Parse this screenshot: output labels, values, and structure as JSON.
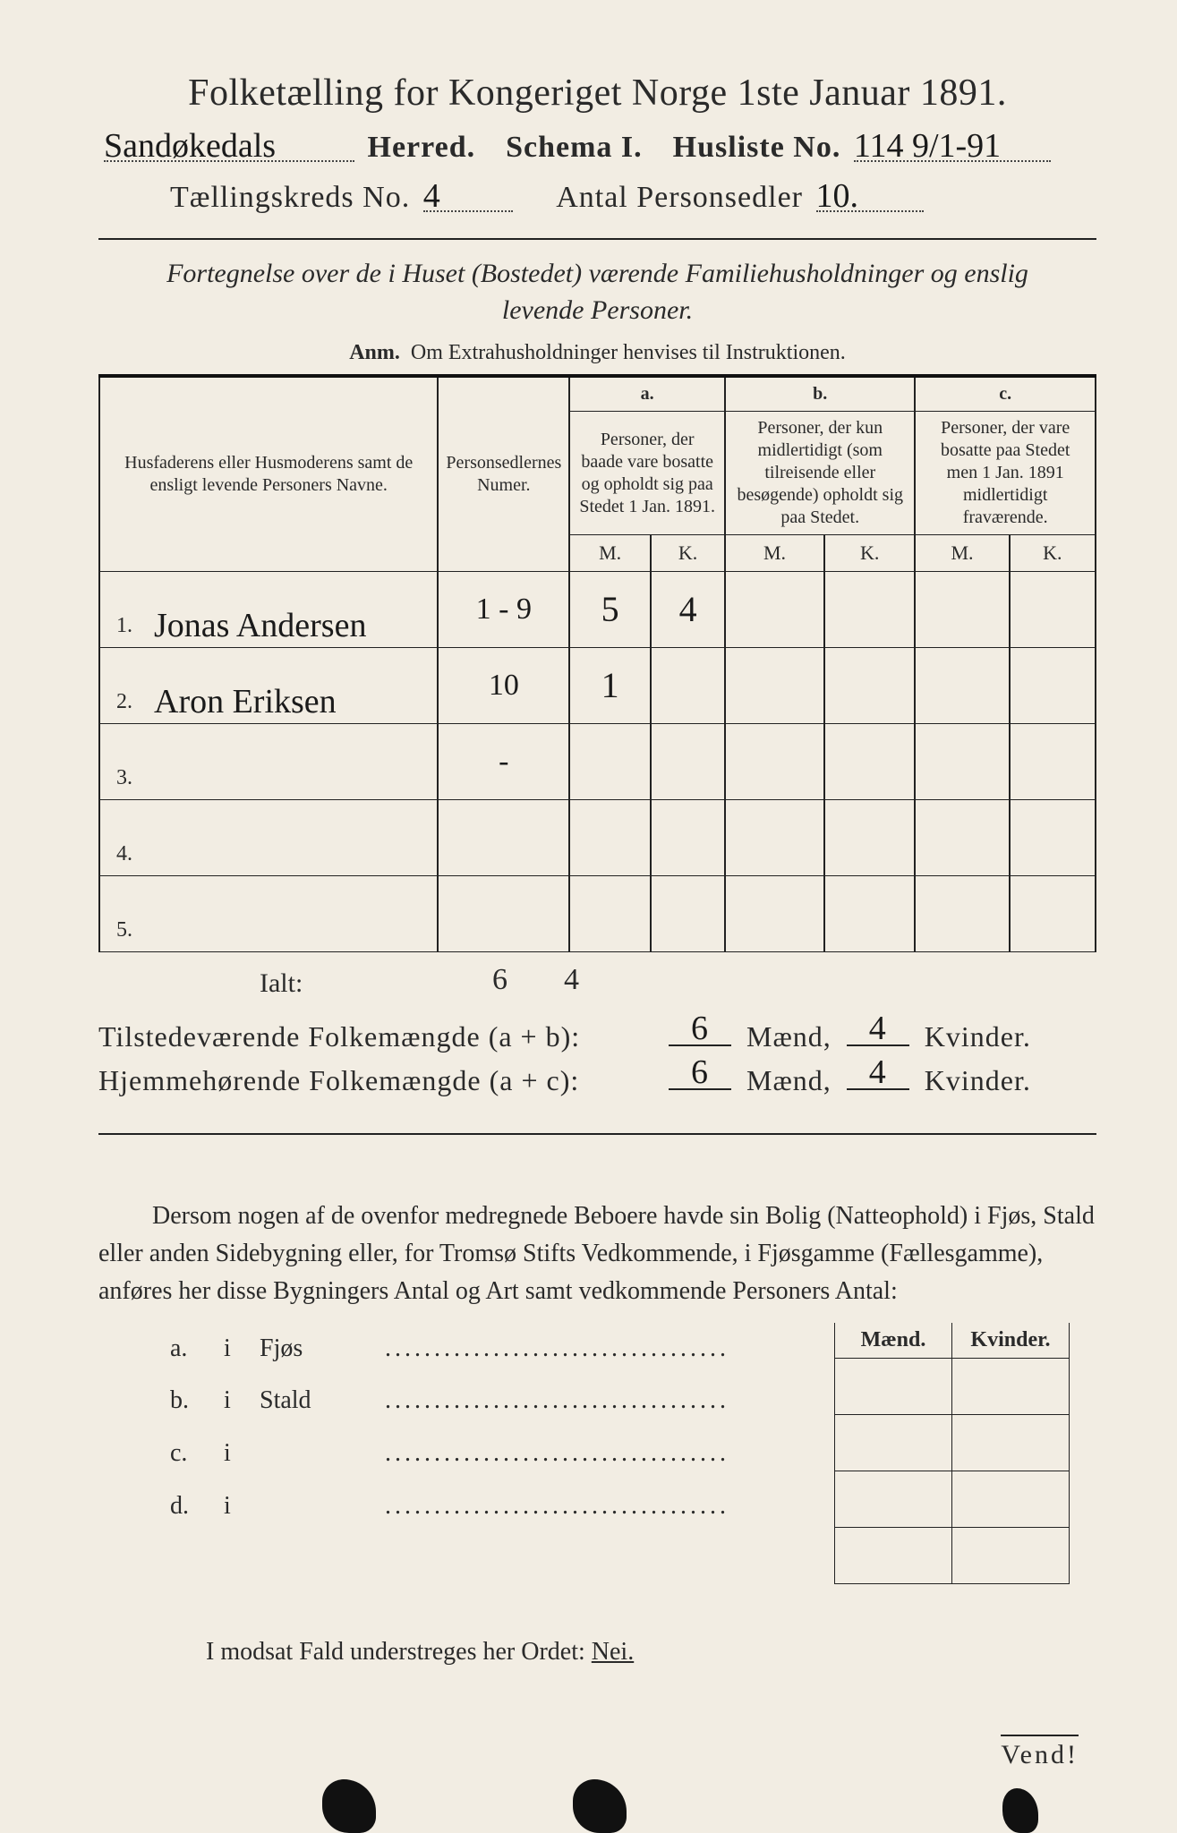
{
  "title": "Folketælling for Kongeriget Norge 1ste Januar 1891.",
  "header": {
    "herred_label": "Herred.",
    "herred_value": "Sandøkedals",
    "schema_label": "Schema I.",
    "husliste_label": "Husliste No.",
    "husliste_value": "114 9/1-91",
    "kreds_label": "Tællingskreds No.",
    "kreds_value": "4",
    "sedler_label": "Antal Personsedler",
    "sedler_value": "10."
  },
  "subtitle": "Fortegnelse over de i Huset (Bostedet) værende Familiehusholdninger og enslig levende Personer.",
  "anm": {
    "lead": "Anm.",
    "text": "Om Extrahusholdninger henvises til Instruktionen."
  },
  "columns": {
    "c1": "Husfaderens eller Husmoderens samt de ensligt levende Personers Navne.",
    "c2": "Personsedlernes Numer.",
    "a_label": "a.",
    "a_text": "Personer, der baade vare bosatte og opholdt sig paa Stedet 1 Jan. 1891.",
    "b_label": "b.",
    "b_text": "Personer, der kun midlertidigt (som tilreisende eller besøgende) opholdt sig paa Stedet.",
    "c_label": "c.",
    "c_text": "Personer, der vare bosatte paa Stedet men 1 Jan. 1891 midlertidigt fraværende.",
    "M": "M.",
    "K": "K."
  },
  "rows": [
    {
      "idx": "1.",
      "name": "Jonas Andersen",
      "sedler": "1 - 9",
      "aM": "5",
      "aK": "4",
      "bM": "",
      "bK": "",
      "cM": "",
      "cK": ""
    },
    {
      "idx": "2.",
      "name": "Aron Eriksen",
      "sedler": "10",
      "aM": "1",
      "aK": "",
      "bM": "",
      "bK": "",
      "cM": "",
      "cK": ""
    },
    {
      "idx": "3.",
      "name": "",
      "sedler": "-",
      "aM": "",
      "aK": "",
      "bM": "",
      "bK": "",
      "cM": "",
      "cK": ""
    },
    {
      "idx": "4.",
      "name": "",
      "sedler": "",
      "aM": "",
      "aK": "",
      "bM": "",
      "bK": "",
      "cM": "",
      "cK": ""
    },
    {
      "idx": "5.",
      "name": "",
      "sedler": "",
      "aM": "",
      "aK": "",
      "bM": "",
      "bK": "",
      "cM": "",
      "cK": ""
    }
  ],
  "ialt": {
    "label": "Ialt:",
    "aM": "6",
    "aK": "4"
  },
  "sums": {
    "tilstede_label": "Tilstedeværende Folkemængde (a + b):",
    "tilstede_m": "6",
    "tilstede_k": "4",
    "hjemme_label": "Hjemmehørende Folkemængde (a + c):",
    "hjemme_m": "6",
    "hjemme_k": "4",
    "maend": "Mænd,",
    "kvinder": "Kvinder."
  },
  "para": "Dersom nogen af de ovenfor medregnede Beboere havde sin Bolig (Natteophold) i Fjøs, Stald eller anden Sidebygning eller, for Tromsø Stifts Vedkommende, i Fjøsgamme (Fællesgamme), anføres her disse Bygningers Antal og Art samt vedkommende Personers Antal:",
  "lower": {
    "maend": "Mænd.",
    "kvinder": "Kvinder.",
    "items": [
      {
        "lett": "a.",
        "i": "i",
        "name": "Fjøs"
      },
      {
        "lett": "b.",
        "i": "i",
        "name": "Stald"
      },
      {
        "lett": "c.",
        "i": "i",
        "name": ""
      },
      {
        "lett": "d.",
        "i": "i",
        "name": ""
      }
    ]
  },
  "nei_line": {
    "pre": "I modsat Fald understreges her Ordet:",
    "nei": "Nei."
  },
  "vend": "Vend!",
  "style": {
    "dots": "..................................."
  }
}
